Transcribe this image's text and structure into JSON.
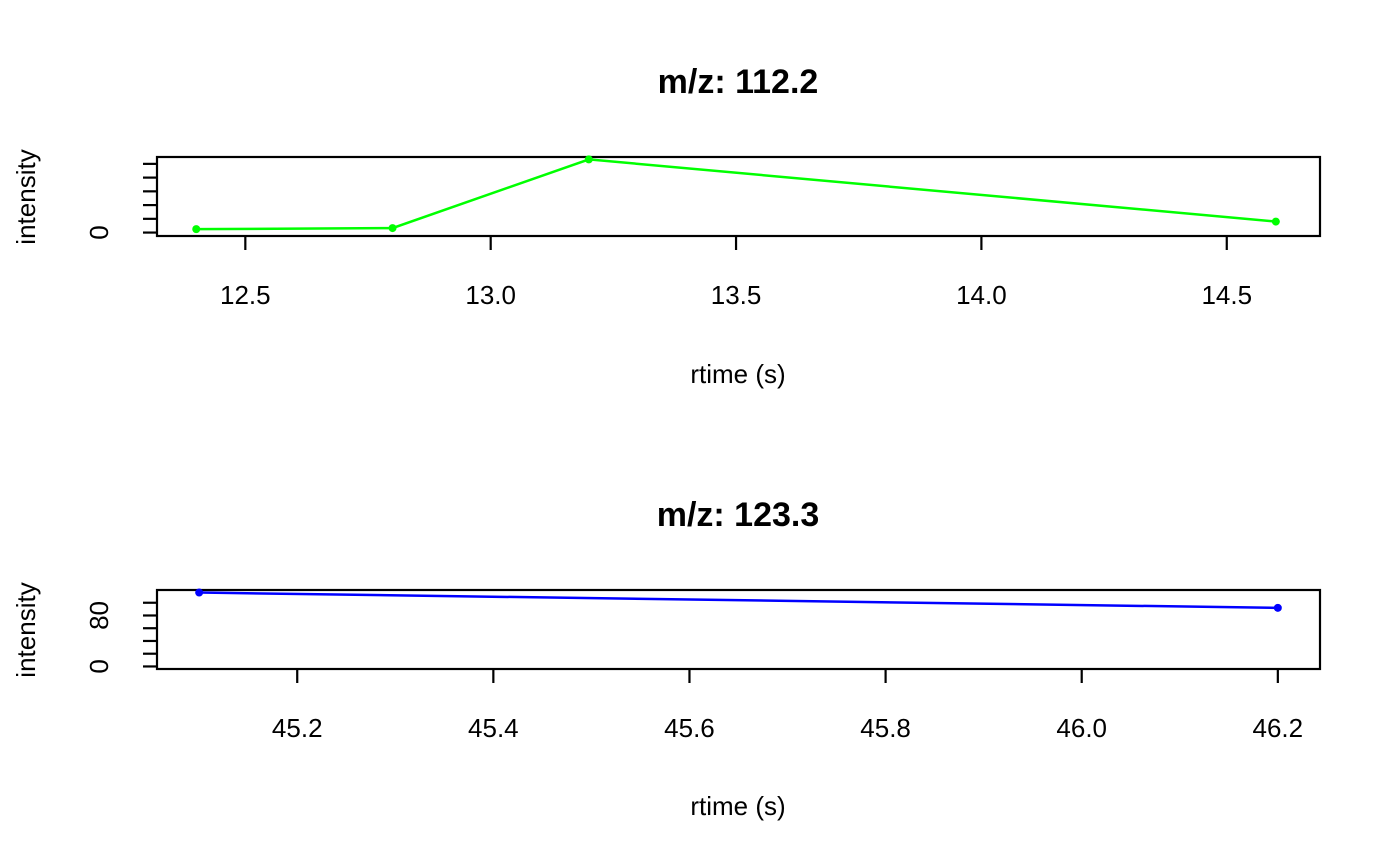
{
  "chart_data": [
    {
      "type": "line",
      "title": "m/z: 112.2",
      "xlabel": "rtime (s)",
      "ylabel": "intensity",
      "xlim": [
        12.32,
        14.69
      ],
      "ylim": [
        -1,
        22
      ],
      "x_ticks": [
        12.5,
        13.0,
        13.5,
        14.0,
        14.5
      ],
      "x_tick_labels": [
        "12.5",
        "13.0",
        "13.5",
        "14.0",
        "14.5"
      ],
      "y_ticks": [
        0,
        4,
        8,
        12,
        16,
        20
      ],
      "y_tick_labels": [
        "0",
        "",
        "",
        "",
        "",
        ""
      ],
      "grid": false,
      "series": [
        {
          "color": "#00ff00",
          "x": [
            12.4,
            12.8,
            13.2,
            14.6
          ],
          "y": [
            1,
            1.3,
            21.3,
            3.2
          ]
        }
      ]
    },
    {
      "type": "line",
      "title": "m/z: 123.3",
      "xlabel": "rtime (s)",
      "ylabel": "intensity",
      "xlim": [
        45.057,
        46.243
      ],
      "ylim": [
        -4,
        120
      ],
      "x_ticks": [
        45.2,
        45.4,
        45.6,
        45.8,
        46.0,
        46.2
      ],
      "x_tick_labels": [
        "45.2",
        "45.4",
        "45.6",
        "45.8",
        "46.0",
        "46.2"
      ],
      "y_ticks": [
        0,
        20,
        40,
        60,
        80,
        100
      ],
      "y_tick_labels": [
        "0",
        "",
        "",
        "",
        "80",
        ""
      ],
      "grid": false,
      "series": [
        {
          "color": "#0000ff",
          "x": [
            45.1,
            46.2
          ],
          "y": [
            116,
            92
          ]
        }
      ]
    }
  ]
}
